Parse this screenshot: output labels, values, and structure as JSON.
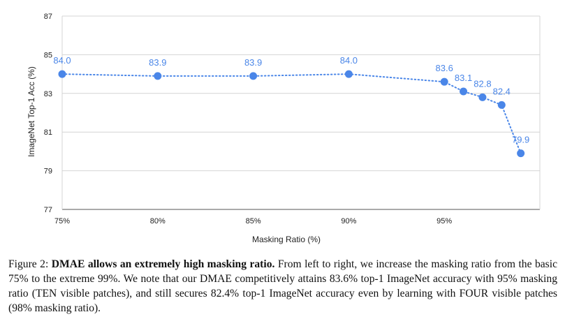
{
  "chart_data": {
    "type": "line",
    "title": "",
    "xlabel": "Masking Ratio (%)",
    "ylabel": "ImageNet Top-1 Acc (%)",
    "x": [
      75,
      80,
      85,
      90,
      95,
      96,
      97,
      98,
      99
    ],
    "series": [
      {
        "values": [
          84.0,
          83.9,
          83.9,
          84.0,
          83.6,
          83.1,
          82.8,
          82.4,
          79.9
        ],
        "labels": [
          "84.0",
          "83.9",
          "83.9",
          "84.0",
          "83.6",
          "83.1",
          "82.8",
          "82.4",
          "79.9"
        ],
        "color": "#4a86e8",
        "line_style": "dotted",
        "marker": "circle"
      }
    ],
    "xticks": [
      75,
      80,
      85,
      90,
      95
    ],
    "xtick_labels": [
      "75%",
      "80%",
      "85%",
      "90%",
      "95%"
    ],
    "yticks": [
      77,
      79,
      81,
      83,
      85,
      87
    ],
    "ytick_labels": [
      "77",
      "79",
      "81",
      "83",
      "85",
      "87"
    ],
    "xlim": [
      75,
      100
    ],
    "ylim": [
      77,
      87
    ],
    "grid": true,
    "legend": "none"
  },
  "caption": {
    "prefix": "Figure 2: ",
    "bold": "DMAE allows an extremely high masking ratio.",
    "rest": " From left to right, we increase the masking ratio from the basic 75% to the extreme 99%. We note that our DMAE competitively attains 83.6% top-1 ImageNet accuracy with 95% masking ratio (TEN visible patches), and still secures 82.4% top-1 ImageNet accuracy even by learning with FOUR visible patches (98% masking ratio)."
  }
}
